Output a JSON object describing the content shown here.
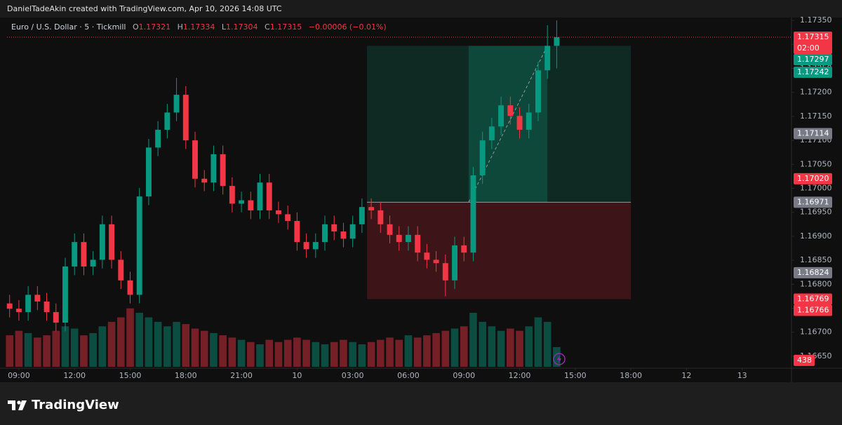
{
  "header": {
    "attribution": "DanielTadeAkin created with TradingView.com, Apr 10, 2026 14:08 UTC"
  },
  "footer": {
    "brand": "TradingView"
  },
  "chart_data": {
    "type": "candlestick",
    "symbol": "Euro / U.S. Dollar · 5 · Tickmill",
    "legend": {
      "open_label": "O",
      "open": "1.17321",
      "high_label": "H",
      "high": "1.17334",
      "low_label": "L",
      "low": "1.17304",
      "close_label": "C",
      "close": "1.17315",
      "change": "−0.00006 (−0.01%)"
    },
    "up_color": "#089981",
    "down_color": "#f23645",
    "x": [
      -0.5,
      0,
      0.5,
      1,
      1.5,
      2,
      2.5,
      3,
      3.5,
      4,
      4.5,
      5,
      5.5,
      6,
      6.5,
      7,
      7.5,
      8,
      8.5,
      9,
      9.5,
      10,
      10.5,
      11,
      11.5,
      12,
      12.5,
      13,
      13.5,
      14,
      14.5,
      15,
      15.5,
      16,
      16.5,
      17,
      17.5,
      18,
      18.5,
      19,
      19.5,
      20,
      20.5,
      21,
      21.5,
      22,
      22.5,
      23,
      23.5,
      24,
      24.5,
      25,
      25.5,
      26,
      26.5,
      27,
      27.5,
      28,
      28.5,
      29
    ],
    "open": [
      1.1676,
      1.16749,
      1.16742,
      1.16778,
      1.16764,
      1.16742,
      1.1672,
      1.16837,
      1.16888,
      1.16837,
      1.16851,
      1.16925,
      1.16851,
      1.16808,
      1.16778,
      1.16983,
      1.17085,
      1.17122,
      1.17158,
      1.17195,
      1.171,
      1.1702,
      1.17012,
      1.17071,
      1.17005,
      1.16968,
      1.16975,
      1.16954,
      1.17012,
      1.16954,
      1.16946,
      1.16932,
      1.16888,
      1.16873,
      1.16888,
      1.16925,
      1.1691,
      1.16895,
      1.16925,
      1.16961,
      1.16954,
      1.16925,
      1.16903,
      1.16888,
      1.16903,
      1.16866,
      1.16851,
      1.16844,
      1.16808,
      1.16881,
      1.16866,
      1.17027,
      1.171,
      1.17129,
      1.17173,
      1.17151,
      1.17122,
      1.17158,
      1.17246,
      1.17297
    ],
    "high": [
      1.16778,
      1.16767,
      1.16796,
      1.16796,
      1.16782,
      1.1676,
      1.16855,
      1.16906,
      1.16906,
      1.16869,
      1.16943,
      1.16943,
      1.16869,
      1.16826,
      1.17001,
      1.17103,
      1.1714,
      1.17176,
      1.1723,
      1.17213,
      1.17118,
      1.17038,
      1.17089,
      1.17089,
      1.17023,
      1.16993,
      1.16993,
      1.1703,
      1.1703,
      1.16972,
      1.16964,
      1.1695,
      1.16906,
      1.16906,
      1.16943,
      1.16943,
      1.16928,
      1.16943,
      1.16979,
      1.16979,
      1.16972,
      1.16943,
      1.16921,
      1.16921,
      1.16921,
      1.16884,
      1.16869,
      1.16862,
      1.16899,
      1.16899,
      1.17045,
      1.17118,
      1.17147,
      1.17191,
      1.17191,
      1.17169,
      1.17176,
      1.17264,
      1.1734,
      1.1735
    ],
    "low": [
      1.16731,
      1.16724,
      1.16724,
      1.16746,
      1.16724,
      1.16702,
      1.16702,
      1.16819,
      1.16819,
      1.16819,
      1.16833,
      1.16833,
      1.1679,
      1.1676,
      1.1676,
      1.16965,
      1.17067,
      1.17104,
      1.1714,
      1.17082,
      1.17002,
      1.16994,
      1.16994,
      1.16987,
      1.1695,
      1.1695,
      1.16936,
      1.16936,
      1.16936,
      1.16928,
      1.16914,
      1.1687,
      1.16855,
      1.16855,
      1.1687,
      1.16892,
      1.16877,
      1.16877,
      1.16907,
      1.16936,
      1.16907,
      1.16885,
      1.1687,
      1.1687,
      1.16848,
      1.16833,
      1.16826,
      1.16775,
      1.1679,
      1.16848,
      1.16848,
      1.17009,
      1.17082,
      1.17111,
      1.17133,
      1.17104,
      1.17104,
      1.1714,
      1.17228,
      1.1725
    ],
    "close": [
      1.16749,
      1.16742,
      1.16778,
      1.16764,
      1.16742,
      1.1672,
      1.16837,
      1.16888,
      1.16837,
      1.16851,
      1.16925,
      1.16851,
      1.16808,
      1.16778,
      1.16983,
      1.17085,
      1.17122,
      1.17158,
      1.17195,
      1.171,
      1.1702,
      1.17012,
      1.17071,
      1.17005,
      1.16968,
      1.16975,
      1.16954,
      1.17012,
      1.16954,
      1.16946,
      1.16932,
      1.16888,
      1.16873,
      1.16888,
      1.16925,
      1.1691,
      1.16895,
      1.16925,
      1.16961,
      1.16954,
      1.16925,
      1.16903,
      1.16888,
      1.16903,
      1.16866,
      1.16851,
      1.16844,
      1.16808,
      1.16881,
      1.16866,
      1.17027,
      1.171,
      1.17129,
      1.17173,
      1.17151,
      1.17122,
      1.17158,
      1.17246,
      1.17297,
      1.17315
    ],
    "volume": [
      700,
      800,
      750,
      650,
      700,
      800,
      900,
      850,
      700,
      750,
      900,
      1000,
      1100,
      1300,
      1200,
      1100,
      1000,
      900,
      1000,
      950,
      850,
      800,
      750,
      700,
      650,
      600,
      550,
      500,
      600,
      550,
      600,
      650,
      600,
      550,
      500,
      550,
      600,
      550,
      500,
      550,
      600,
      650,
      600,
      700,
      650,
      700,
      750,
      800,
      850,
      900,
      1200,
      1000,
      900,
      800,
      850,
      800,
      900,
      1100,
      1000,
      438
    ],
    "volume_lim": [
      0,
      1560
    ],
    "xlim": [
      -0.64,
      41.66
    ],
    "xticks": [
      {
        "value": 0,
        "label": "09:00"
      },
      {
        "value": 3,
        "label": "12:00"
      },
      {
        "value": 6,
        "label": "15:00"
      },
      {
        "value": 9,
        "label": "18:00"
      },
      {
        "value": 12,
        "label": "21:00"
      },
      {
        "value": 15,
        "label": "10"
      },
      {
        "value": 18,
        "label": "03:00"
      },
      {
        "value": 21,
        "label": "06:00"
      },
      {
        "value": 24,
        "label": "09:00"
      },
      {
        "value": 27,
        "label": "12:00"
      },
      {
        "value": 30,
        "label": "15:00"
      },
      {
        "value": 33,
        "label": "18:00"
      },
      {
        "value": 36,
        "label": "12"
      },
      {
        "value": 39,
        "label": "13"
      }
    ],
    "ylim": [
      1.16625,
      1.17356
    ],
    "yticks": [
      {
        "value": 1.1735,
        "label": "1.17350"
      },
      {
        "value": 1.173,
        "label": "1.17300"
      },
      {
        "value": 1.1725,
        "label": "1.17250"
      },
      {
        "value": 1.172,
        "label": "1.17200"
      },
      {
        "value": 1.1715,
        "label": "1.17150"
      },
      {
        "value": 1.171,
        "label": "1.17100"
      },
      {
        "value": 1.1705,
        "label": "1.17050"
      },
      {
        "value": 1.17,
        "label": "1.17000"
      },
      {
        "value": 1.1695,
        "label": "1.16950"
      },
      {
        "value": 1.169,
        "label": "1.16900"
      },
      {
        "value": 1.1685,
        "label": "1.16850"
      },
      {
        "value": 1.168,
        "label": "1.16800"
      },
      {
        "value": 1.1675,
        "label": "1.16750"
      },
      {
        "value": 1.167,
        "label": "1.16700"
      },
      {
        "value": 1.1665,
        "label": "1.16650"
      }
    ],
    "position": {
      "entry": 1.16971,
      "target": 1.17297,
      "stop": 1.16769,
      "x": [
        18.77,
        33.0
      ],
      "fill_x": [
        24.25,
        28.5
      ],
      "profit_color": "#0c8f6f",
      "loss_color": "#a8262f"
    },
    "current_price": {
      "value": 1.17315,
      "label": "1.17315",
      "countdown": "02:00",
      "color": "#f23645"
    },
    "price_labels": [
      {
        "value": 1.17297,
        "label": "1.17297",
        "color": "#089981"
      },
      {
        "value": 1.17242,
        "label": "1.17242",
        "color": "#089981"
      },
      {
        "value": 1.17114,
        "label": "1.17114",
        "color": "#787b86"
      },
      {
        "value": 1.1702,
        "label": "1.17020",
        "color": "#f23645"
      },
      {
        "value": 1.16971,
        "label": "1.16971",
        "color": "#787b86"
      },
      {
        "value": 1.16824,
        "label": "1.16824",
        "color": "#787b86"
      },
      {
        "value": 1.16769,
        "label": "1.16769",
        "color": "#f23645"
      },
      {
        "value": 1.16766,
        "label": "1.16766",
        "color": "#f23645"
      }
    ]
  }
}
